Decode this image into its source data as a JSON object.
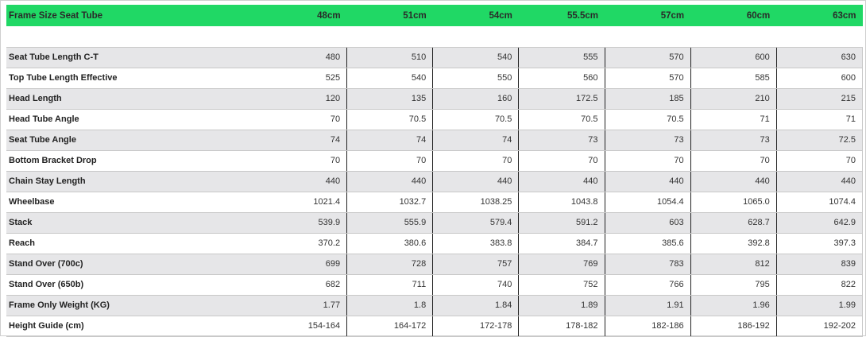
{
  "header": {
    "title": "Frame Size Seat Tube",
    "sizes": [
      "48cm",
      "51cm",
      "54cm",
      "55.5cm",
      "57cm",
      "60cm",
      "63cm"
    ]
  },
  "colors": {
    "header_bg": "#20d865",
    "row_alt": "#e6e6e8"
  },
  "rows": [
    {
      "label": "Seat Tube Length C-T",
      "values": [
        "480",
        "510",
        "540",
        "555",
        "570",
        "600",
        "630"
      ]
    },
    {
      "label": "Top Tube Length Effective",
      "values": [
        "525",
        "540",
        "550",
        "560",
        "570",
        "585",
        "600"
      ]
    },
    {
      "label": "Head Length",
      "values": [
        "120",
        "135",
        "160",
        "172.5",
        "185",
        "210",
        "215"
      ]
    },
    {
      "label": "Head Tube Angle",
      "values": [
        "70",
        "70.5",
        "70.5",
        "70.5",
        "70.5",
        "71",
        "71"
      ]
    },
    {
      "label": "Seat Tube Angle",
      "values": [
        "74",
        "74",
        "74",
        "73",
        "73",
        "73",
        "72.5"
      ]
    },
    {
      "label": "Bottom Bracket Drop",
      "values": [
        "70",
        "70",
        "70",
        "70",
        "70",
        "70",
        "70"
      ]
    },
    {
      "label": "Chain Stay Length",
      "values": [
        "440",
        "440",
        "440",
        "440",
        "440",
        "440",
        "440"
      ]
    },
    {
      "label": "Wheelbase",
      "values": [
        "1021.4",
        "1032.7",
        "1038.25",
        "1043.8",
        "1054.4",
        "1065.0",
        "1074.4"
      ]
    },
    {
      "label": "Stack",
      "values": [
        "539.9",
        "555.9",
        "579.4",
        "591.2",
        "603",
        "628.7",
        "642.9"
      ]
    },
    {
      "label": "Reach",
      "values": [
        "370.2",
        "380.6",
        "383.8",
        "384.7",
        "385.6",
        "392.8",
        "397.3"
      ]
    },
    {
      "label": "Stand Over (700c)",
      "values": [
        "699",
        "728",
        "757",
        "769",
        "783",
        "812",
        "839"
      ]
    },
    {
      "label": "Stand Over (650b)",
      "values": [
        "682",
        "711",
        "740",
        "752",
        "766",
        "795",
        "822"
      ]
    },
    {
      "label": "Frame Only Weight (KG)",
      "values": [
        "1.77",
        "1.8",
        "1.84",
        "1.89",
        "1.91",
        "1.96",
        "1.99"
      ]
    },
    {
      "label": "Height Guide (cm)",
      "values": [
        "154-164",
        "164-172",
        "172-178",
        "178-182",
        "182-186",
        "186-192",
        "192-202"
      ]
    }
  ]
}
